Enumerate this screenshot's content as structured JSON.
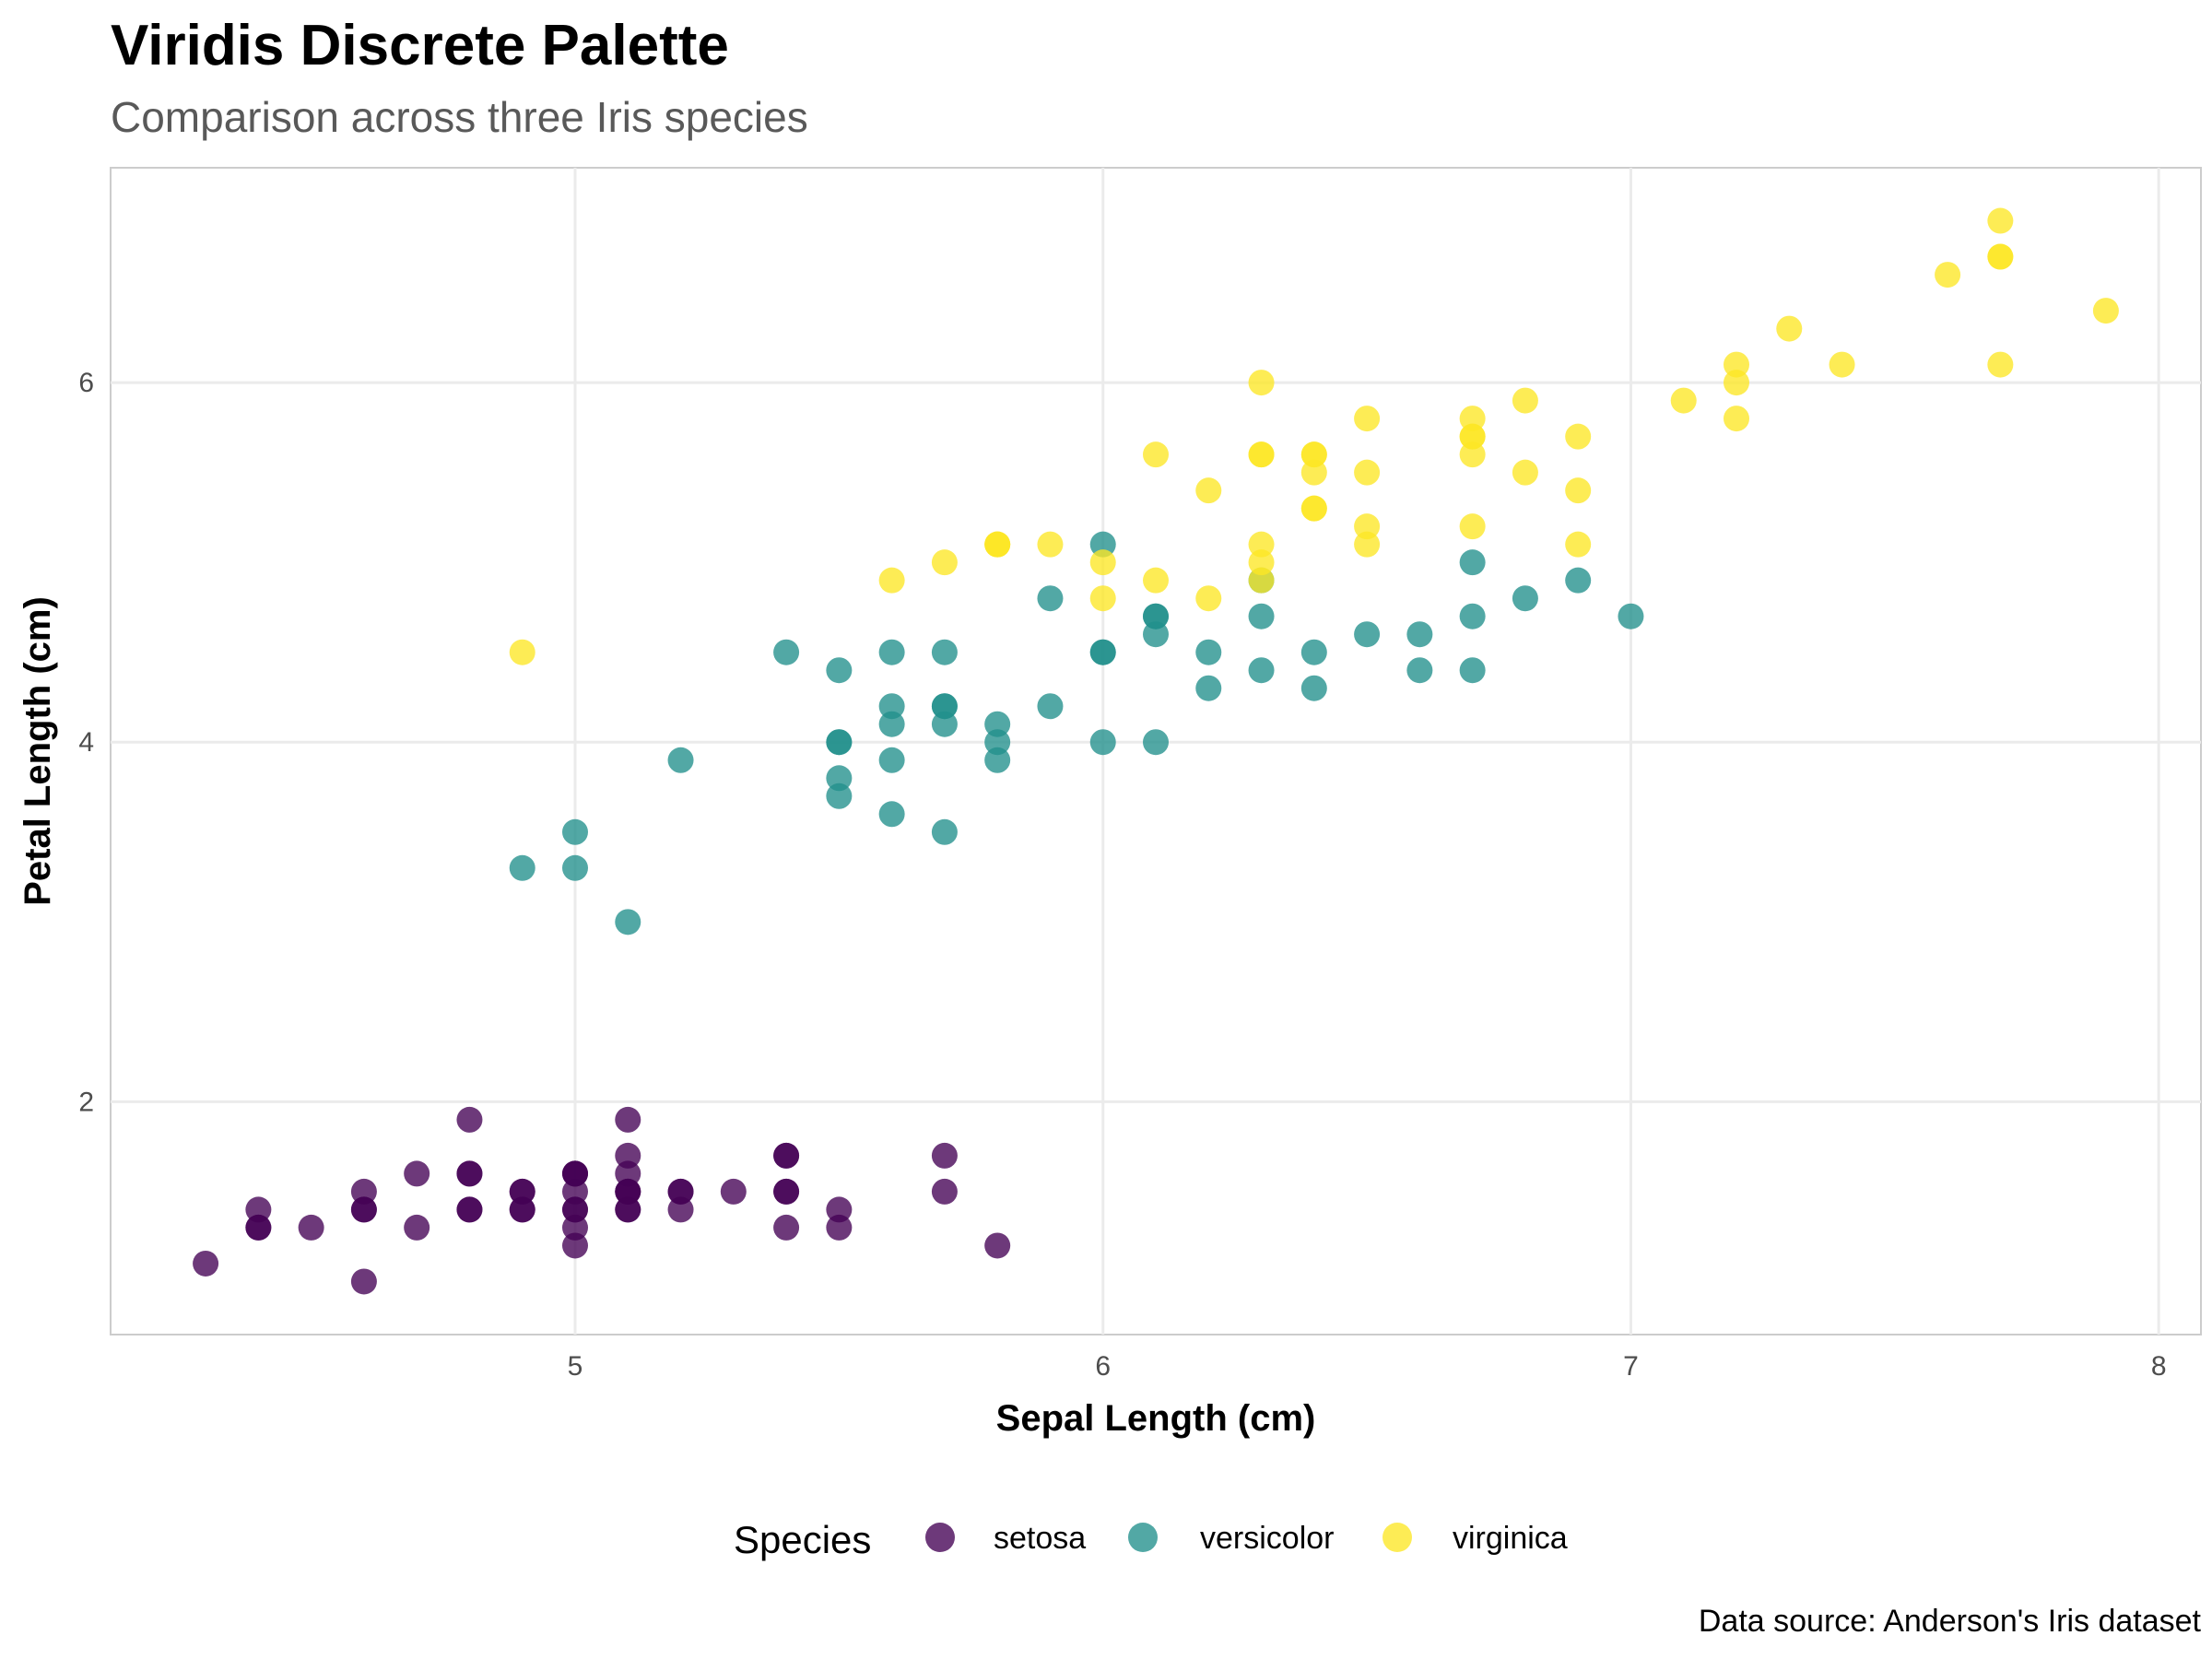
{
  "chart_data": {
    "type": "scatter",
    "title": "Viridis Discrete Palette",
    "subtitle": "Comparison across three Iris species",
    "caption": "Data source: Anderson's Iris dataset",
    "xlabel": "Sepal Length (cm)",
    "ylabel": "Petal Length (cm)",
    "xlim": [
      4.12,
      8.08
    ],
    "ylim": [
      0.705,
      7.195
    ],
    "xticks": [
      5,
      6,
      7,
      8
    ],
    "yticks": [
      2,
      4,
      6
    ],
    "grid": true,
    "legend": {
      "title": "Species",
      "position": "bottom"
    },
    "series": [
      {
        "name": "setosa",
        "color": "#440154",
        "points": [
          [
            5.1,
            1.4
          ],
          [
            4.9,
            1.4
          ],
          [
            4.7,
            1.3
          ],
          [
            4.6,
            1.5
          ],
          [
            5.0,
            1.4
          ],
          [
            5.4,
            1.7
          ],
          [
            4.6,
            1.4
          ],
          [
            5.0,
            1.5
          ],
          [
            4.4,
            1.4
          ],
          [
            4.9,
            1.5
          ],
          [
            5.4,
            1.5
          ],
          [
            4.8,
            1.6
          ],
          [
            4.8,
            1.4
          ],
          [
            4.3,
            1.1
          ],
          [
            5.8,
            1.2
          ],
          [
            5.7,
            1.5
          ],
          [
            5.4,
            1.3
          ],
          [
            5.1,
            1.4
          ],
          [
            5.7,
            1.7
          ],
          [
            5.1,
            1.5
          ],
          [
            5.4,
            1.7
          ],
          [
            5.1,
            1.5
          ],
          [
            4.6,
            1.0
          ],
          [
            5.1,
            1.7
          ],
          [
            4.8,
            1.9
          ],
          [
            5.0,
            1.6
          ],
          [
            5.0,
            1.6
          ],
          [
            5.2,
            1.5
          ],
          [
            5.2,
            1.4
          ],
          [
            4.7,
            1.6
          ],
          [
            4.8,
            1.6
          ],
          [
            5.4,
            1.5
          ],
          [
            5.2,
            1.5
          ],
          [
            5.5,
            1.4
          ],
          [
            4.9,
            1.5
          ],
          [
            5.0,
            1.2
          ],
          [
            5.5,
            1.3
          ],
          [
            4.9,
            1.4
          ],
          [
            4.4,
            1.3
          ],
          [
            5.1,
            1.5
          ],
          [
            5.0,
            1.3
          ],
          [
            4.5,
            1.3
          ],
          [
            4.4,
            1.3
          ],
          [
            5.0,
            1.6
          ],
          [
            5.1,
            1.9
          ],
          [
            4.8,
            1.4
          ],
          [
            5.1,
            1.6
          ],
          [
            4.6,
            1.4
          ],
          [
            5.3,
            1.5
          ],
          [
            5.0,
            1.4
          ]
        ]
      },
      {
        "name": "versicolor",
        "color": "#21908C",
        "points": [
          [
            7.0,
            4.7
          ],
          [
            6.4,
            4.5
          ],
          [
            6.9,
            4.9
          ],
          [
            5.5,
            4.0
          ],
          [
            6.5,
            4.6
          ],
          [
            5.7,
            4.5
          ],
          [
            6.3,
            4.7
          ],
          [
            4.9,
            3.3
          ],
          [
            6.6,
            4.6
          ],
          [
            5.2,
            3.9
          ],
          [
            5.0,
            3.5
          ],
          [
            5.9,
            4.2
          ],
          [
            6.0,
            4.0
          ],
          [
            6.1,
            4.7
          ],
          [
            5.6,
            3.6
          ],
          [
            6.7,
            4.4
          ],
          [
            5.6,
            4.5
          ],
          [
            5.8,
            4.1
          ],
          [
            6.2,
            4.5
          ],
          [
            5.6,
            3.9
          ],
          [
            5.9,
            4.8
          ],
          [
            6.1,
            4.0
          ],
          [
            6.3,
            4.9
          ],
          [
            6.1,
            4.7
          ],
          [
            6.4,
            4.3
          ],
          [
            6.6,
            4.4
          ],
          [
            6.8,
            4.8
          ],
          [
            6.7,
            5.0
          ],
          [
            6.0,
            4.5
          ],
          [
            5.7,
            3.5
          ],
          [
            5.5,
            3.8
          ],
          [
            5.5,
            3.7
          ],
          [
            5.8,
            3.9
          ],
          [
            6.0,
            5.1
          ],
          [
            5.4,
            4.5
          ],
          [
            6.0,
            4.5
          ],
          [
            6.7,
            4.7
          ],
          [
            6.3,
            4.4
          ],
          [
            5.6,
            4.1
          ],
          [
            5.5,
            4.0
          ],
          [
            5.5,
            4.4
          ],
          [
            6.1,
            4.6
          ],
          [
            5.8,
            4.0
          ],
          [
            5.0,
            3.3
          ],
          [
            5.6,
            4.2
          ],
          [
            5.7,
            4.2
          ],
          [
            5.7,
            4.2
          ],
          [
            6.2,
            4.3
          ],
          [
            5.1,
            3.0
          ],
          [
            5.7,
            4.1
          ]
        ]
      },
      {
        "name": "virginica",
        "color": "#FDE725",
        "points": [
          [
            6.3,
            6.0
          ],
          [
            5.8,
            5.1
          ],
          [
            7.1,
            5.9
          ],
          [
            6.3,
            5.6
          ],
          [
            6.5,
            5.8
          ],
          [
            7.6,
            6.6
          ],
          [
            4.9,
            4.5
          ],
          [
            7.3,
            6.3
          ],
          [
            6.7,
            5.8
          ],
          [
            7.2,
            6.1
          ],
          [
            6.5,
            5.1
          ],
          [
            6.4,
            5.3
          ],
          [
            6.8,
            5.5
          ],
          [
            5.7,
            5.0
          ],
          [
            5.8,
            5.1
          ],
          [
            6.4,
            5.3
          ],
          [
            6.5,
            5.5
          ],
          [
            7.7,
            6.7
          ],
          [
            7.7,
            6.9
          ],
          [
            6.0,
            5.0
          ],
          [
            6.9,
            5.7
          ],
          [
            5.6,
            4.9
          ],
          [
            7.7,
            6.7
          ],
          [
            6.3,
            4.9
          ],
          [
            6.7,
            5.7
          ],
          [
            7.2,
            6.0
          ],
          [
            6.2,
            4.8
          ],
          [
            6.1,
            4.9
          ],
          [
            6.4,
            5.6
          ],
          [
            7.2,
            5.8
          ],
          [
            7.4,
            6.1
          ],
          [
            7.9,
            6.4
          ],
          [
            6.4,
            5.6
          ],
          [
            6.3,
            5.1
          ],
          [
            6.1,
            5.6
          ],
          [
            7.7,
            6.1
          ],
          [
            6.3,
            5.6
          ],
          [
            6.4,
            5.5
          ],
          [
            6.0,
            4.8
          ],
          [
            6.9,
            5.4
          ],
          [
            6.7,
            5.6
          ],
          [
            6.9,
            5.1
          ],
          [
            5.8,
            5.1
          ],
          [
            6.8,
            5.9
          ],
          [
            6.7,
            5.7
          ],
          [
            6.7,
            5.2
          ],
          [
            6.3,
            5.0
          ],
          [
            6.5,
            5.2
          ],
          [
            6.2,
            5.4
          ],
          [
            5.9,
            5.1
          ]
        ]
      }
    ]
  }
}
